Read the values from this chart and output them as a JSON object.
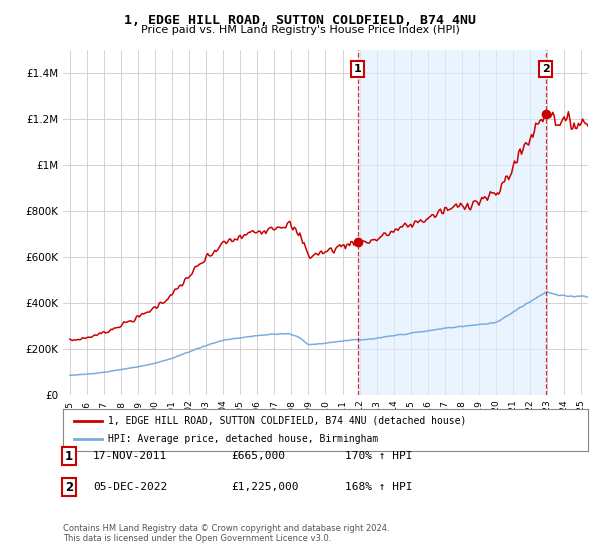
{
  "title": "1, EDGE HILL ROAD, SUTTON COLDFIELD, B74 4NU",
  "subtitle": "Price paid vs. HM Land Registry's House Price Index (HPI)",
  "legend_line1": "1, EDGE HILL ROAD, SUTTON COLDFIELD, B74 4NU (detached house)",
  "legend_line2": "HPI: Average price, detached house, Birmingham",
  "sale1_label": "1",
  "sale1_date": "17-NOV-2011",
  "sale1_price": "£665,000",
  "sale1_hpi": "170% ↑ HPI",
  "sale1_year": 2011.88,
  "sale1_value": 665000,
  "sale2_label": "2",
  "sale2_date": "05-DEC-2022",
  "sale2_price": "£1,225,000",
  "sale2_hpi": "168% ↑ HPI",
  "sale2_year": 2022.92,
  "sale2_value": 1225000,
  "footer1": "Contains HM Land Registry data © Crown copyright and database right 2024.",
  "footer2": "This data is licensed under the Open Government Licence v3.0.",
  "red_color": "#cc0000",
  "blue_color": "#7aaddd",
  "shade_color": "#ddeeff",
  "ylim_max": 1500000,
  "xlim_start": 1994.6,
  "xlim_end": 2025.4
}
